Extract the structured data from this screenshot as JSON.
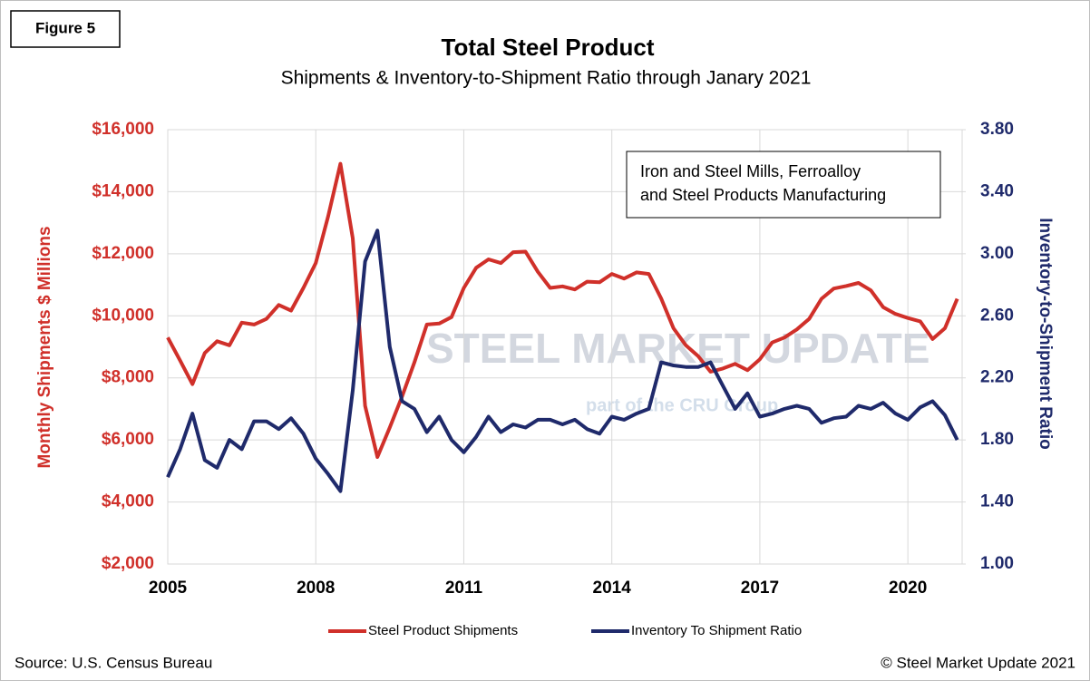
{
  "figure_label": "Figure 5",
  "source": "Source: U.S. Census Bureau",
  "copyright": "© Steel Market Update 2021",
  "chart_data": {
    "type": "line",
    "title": "Total Steel Product",
    "subtitle": "Shipments & Inventory-to-Shipment Ratio through Janary 2021",
    "y_label": "Monthly Shipments $ Millions",
    "y2_label": "Inventory-to-Shipment Ratio",
    "annotation": [
      "Iron and Steel Mills, Ferroalloy",
      "and Steel Products Manufacturing"
    ],
    "watermark": "STEEL MARKET UPDATE",
    "watermark_sub": "part of the CRU Group",
    "grid": true,
    "legend": "bottom",
    "xlim": [
      2005,
      2021.1
    ],
    "xticks": [
      2005,
      2008,
      2011,
      2014,
      2017,
      2020
    ],
    "ylim": [
      2000,
      16000
    ],
    "yticks": [
      {
        "value": 2000,
        "label": "$2,000"
      },
      {
        "value": 4000,
        "label": "$4,000"
      },
      {
        "value": 6000,
        "label": "$6,000"
      },
      {
        "value": 8000,
        "label": "$8,000"
      },
      {
        "value": 10000,
        "label": "$10,000"
      },
      {
        "value": 12000,
        "label": "$12,000"
      },
      {
        "value": 14000,
        "label": "$14,000"
      },
      {
        "value": 16000,
        "label": "$16,000"
      }
    ],
    "y2lim": [
      1.0,
      3.8
    ],
    "y2ticks": [
      {
        "value": 1.0,
        "label": "1.00"
      },
      {
        "value": 1.4,
        "label": "1.40"
      },
      {
        "value": 1.8,
        "label": "1.80"
      },
      {
        "value": 2.2,
        "label": "2.20"
      },
      {
        "value": 2.6,
        "label": "2.60"
      },
      {
        "value": 3.0,
        "label": "3.00"
      },
      {
        "value": 3.4,
        "label": "3.40"
      },
      {
        "value": 3.8,
        "label": "3.80"
      }
    ],
    "x": [
      2005,
      2005.25,
      2005.5,
      2005.75,
      2006,
      2006.25,
      2006.5,
      2006.75,
      2007,
      2007.25,
      2007.5,
      2007.75,
      2008,
      2008.25,
      2008.5,
      2008.75,
      2009,
      2009.25,
      2009.5,
      2009.75,
      2010,
      2010.25,
      2010.5,
      2010.75,
      2011,
      2011.25,
      2011.5,
      2011.75,
      2012,
      2012.25,
      2012.5,
      2012.75,
      2013,
      2013.25,
      2013.5,
      2013.75,
      2014,
      2014.25,
      2014.5,
      2014.75,
      2015,
      2015.25,
      2015.5,
      2015.75,
      2016,
      2016.25,
      2016.5,
      2016.75,
      2017,
      2017.25,
      2017.5,
      2017.75,
      2018,
      2018.25,
      2018.5,
      2018.75,
      2019,
      2019.25,
      2019.5,
      2019.75,
      2020,
      2020.25,
      2020.5,
      2020.75,
      2021
    ],
    "series": [
      {
        "name": "Steel Product Shipments",
        "color": "#d0302a",
        "values": [
          9300,
          8560,
          7800,
          8800,
          9180,
          9050,
          9780,
          9720,
          9900,
          10350,
          10170,
          10900,
          11700,
          13200,
          14900,
          12500,
          7100,
          5450,
          6400,
          7400,
          8500,
          9720,
          9750,
          9960,
          10900,
          11550,
          11820,
          11700,
          12050,
          12070,
          11420,
          10900,
          10950,
          10850,
          11100,
          11080,
          11350,
          11200,
          11400,
          11350,
          10560,
          9600,
          9050,
          8700,
          8200,
          8300,
          8450,
          8250,
          8600,
          9140,
          9300,
          9560,
          9900,
          10550,
          10880,
          10960,
          11060,
          10820,
          10280,
          10060,
          9930,
          9820,
          9250,
          9600,
          10550
        ]
      },
      {
        "name": "Inventory To Shipment Ratio",
        "color": "#1f2a6b",
        "axis": "y2",
        "values": [
          1.56,
          1.74,
          1.97,
          1.67,
          1.62,
          1.8,
          1.74,
          1.92,
          1.92,
          1.87,
          1.94,
          1.84,
          1.68,
          1.58,
          1.47,
          2.12,
          2.95,
          3.15,
          2.4,
          2.05,
          2.0,
          1.85,
          1.95,
          1.8,
          1.72,
          1.82,
          1.95,
          1.85,
          1.9,
          1.88,
          1.93,
          1.93,
          1.9,
          1.93,
          1.87,
          1.84,
          1.95,
          1.93,
          1.97,
          2.0,
          2.3,
          2.28,
          2.27,
          2.27,
          2.3,
          2.15,
          2.0,
          2.1,
          1.95,
          1.97,
          2.0,
          2.02,
          2.0,
          1.91,
          1.94,
          1.95,
          2.02,
          2.0,
          2.04,
          1.97,
          1.93,
          2.01,
          2.05,
          1.96,
          1.8
        ]
      }
    ]
  }
}
